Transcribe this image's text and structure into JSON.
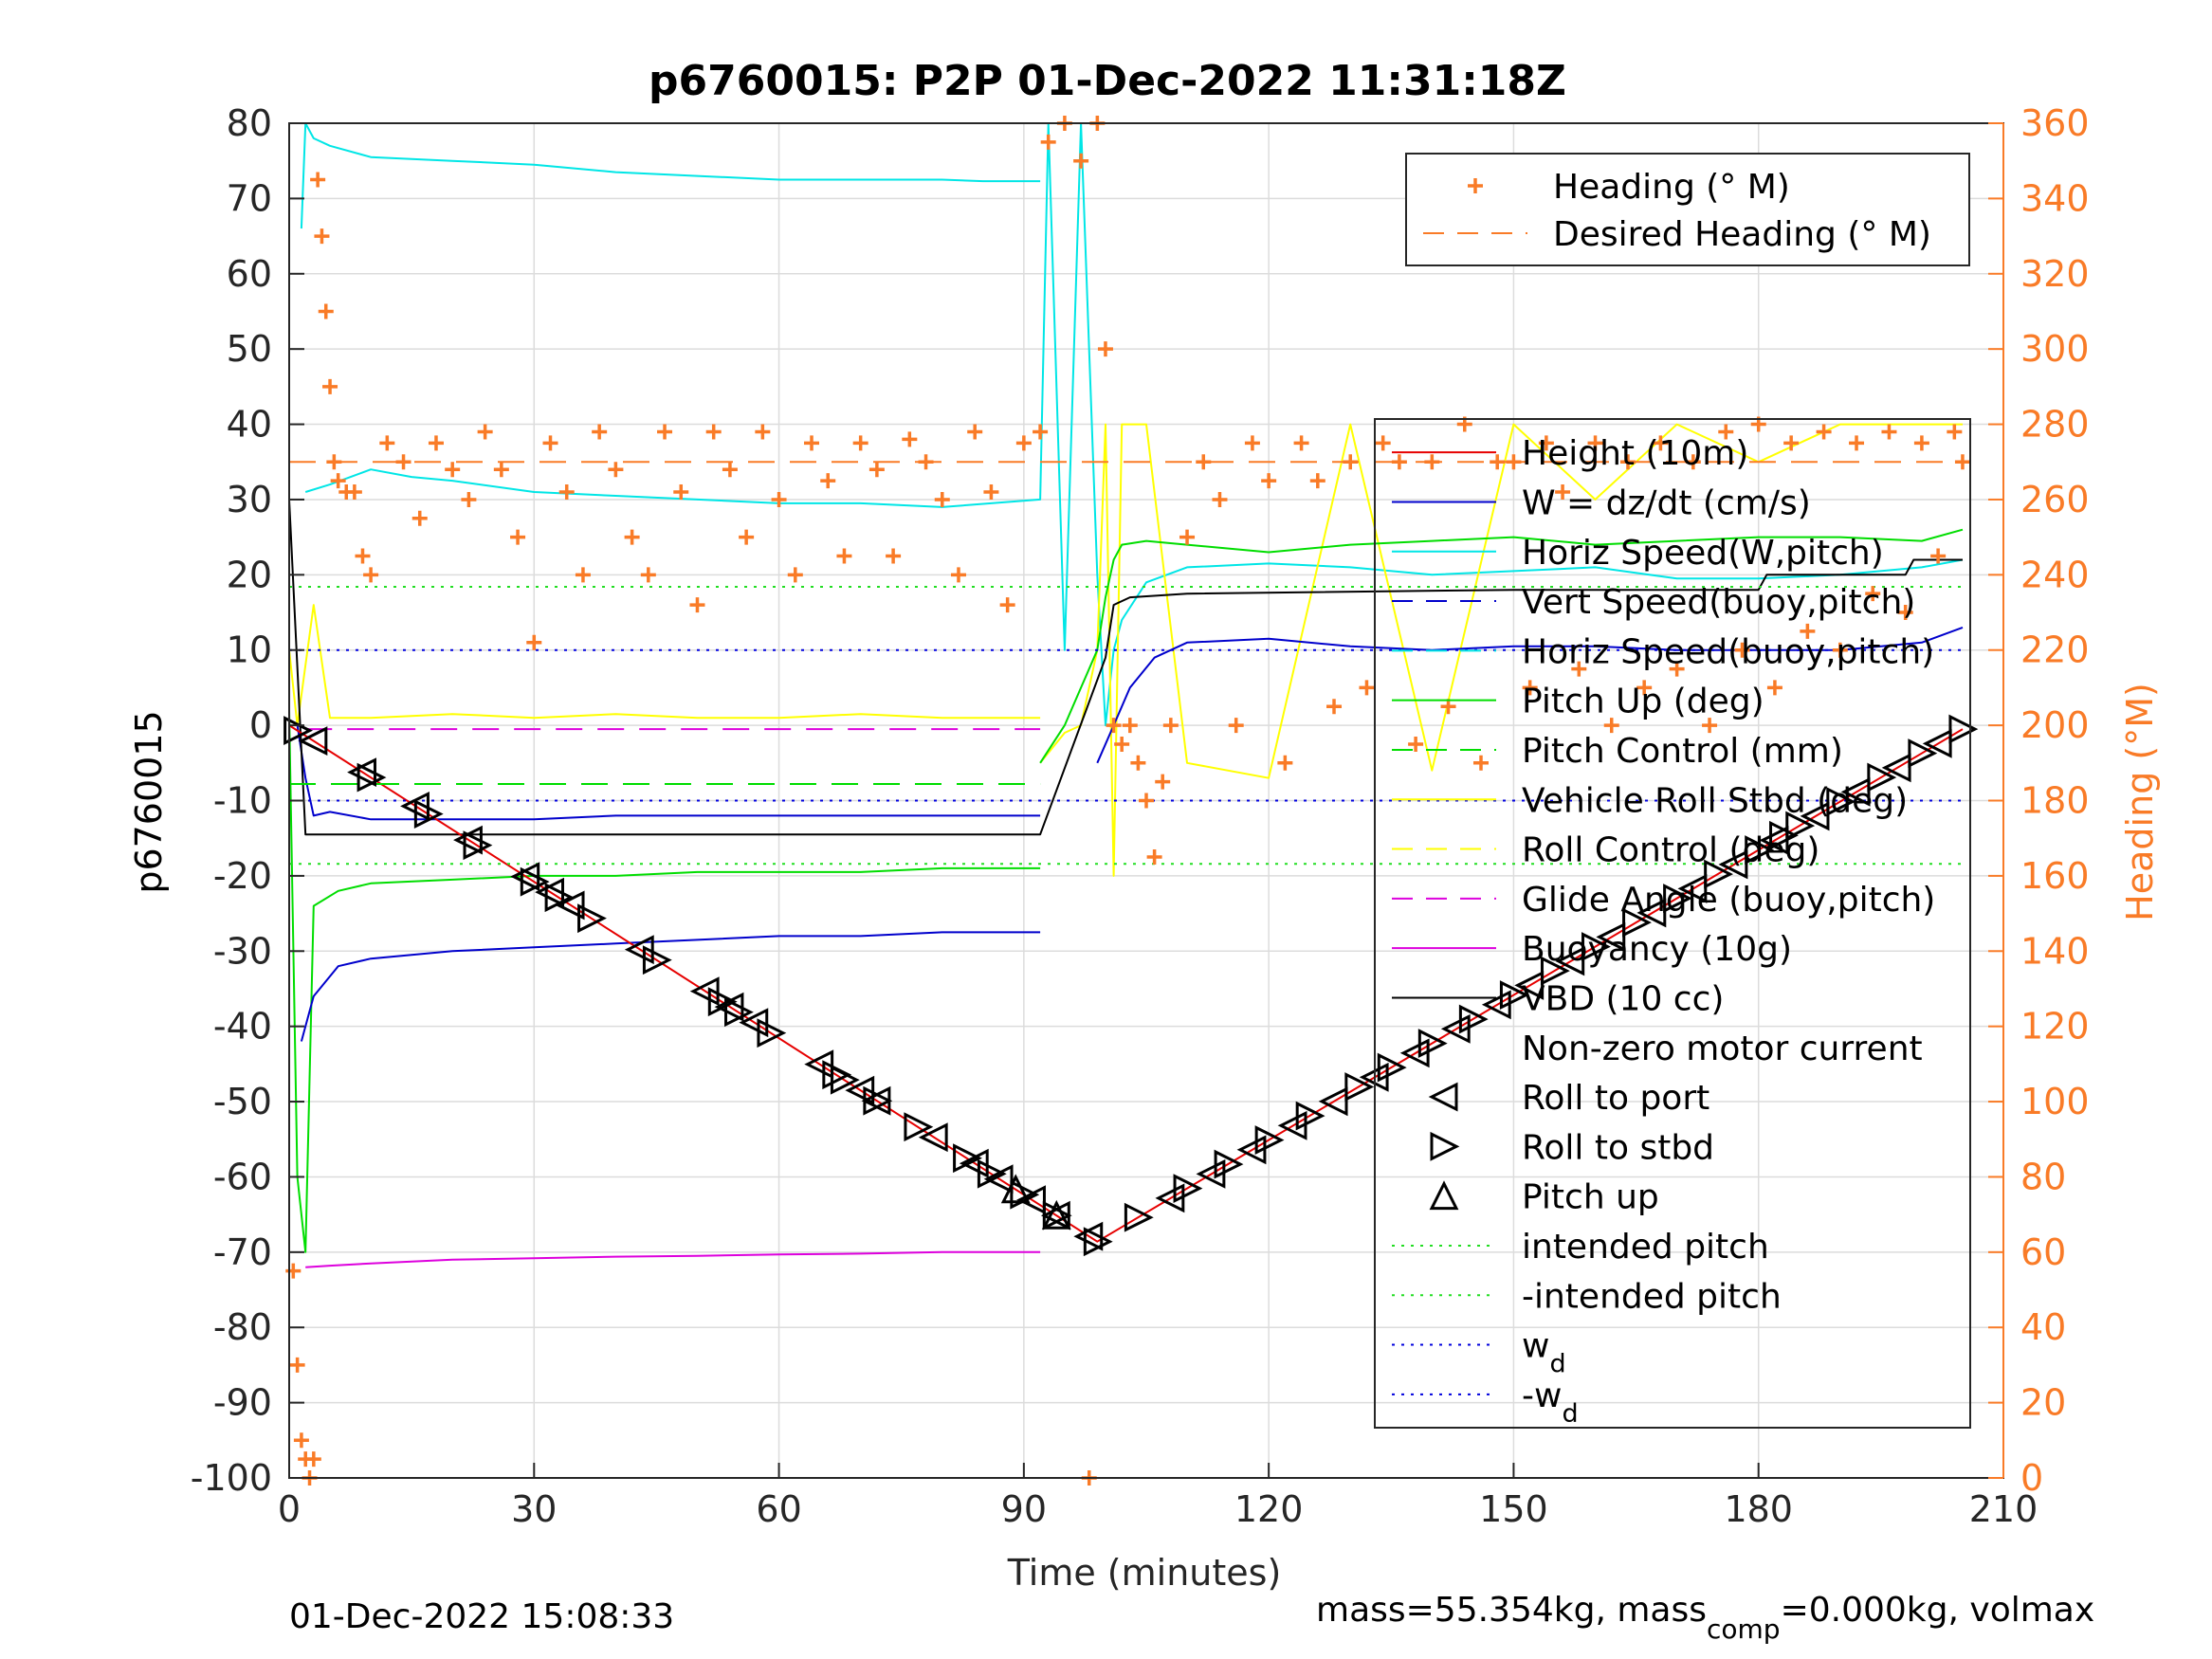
{
  "chart_data": {
    "type": "line",
    "title": "p6760015: P2P 01-Dec-2022 11:31:18Z",
    "xlabel": "Time (minutes)",
    "ylabel": "p6760015",
    "y2label": "Heading (°M)",
    "xlim": [
      0,
      210
    ],
    "ylim": [
      -100,
      80
    ],
    "y2lim": [
      0,
      360
    ],
    "grid": true,
    "x_ticks": [
      0,
      30,
      60,
      90,
      120,
      150,
      180,
      210
    ],
    "y_ticks": [
      80,
      70,
      60,
      50,
      40,
      30,
      20,
      10,
      0,
      -10,
      -20,
      -30,
      -40,
      -50,
      -60,
      -70,
      -80,
      -90,
      -100
    ],
    "y2_ticks": [
      360,
      340,
      320,
      300,
      280,
      260,
      240,
      220,
      200,
      180,
      160,
      140,
      120,
      100,
      80,
      60,
      40,
      20,
      0
    ],
    "footer_left": "01-Dec-2022 15:08:33",
    "footer_right_pre": "mass=55.354kg, mass",
    "footer_right_sub": "comp",
    "footer_right_post": "=0.000kg, volmax",
    "colors": {
      "height": "#e60000",
      "w": "#0000cc",
      "horiz_speed": "#00e6e6",
      "pitch": "#00dd00",
      "roll": "#ffff00",
      "buoyancy": "#dd00dd",
      "vbd": "#000000",
      "heading": "#f97b27",
      "intended_pitch": "#22dd22",
      "wd": "#0000dd"
    },
    "legend_heading": [
      {
        "label": "Heading (° M)",
        "style": "plus",
        "color": "#f97b27"
      },
      {
        "label": "Desired Heading (° M)",
        "style": "dash",
        "color": "#f97b27"
      }
    ],
    "legend_main": [
      {
        "label": "Height (10m)",
        "style": "solid",
        "color": "#e60000"
      },
      {
        "label": "W = dz/dt (cm/s)",
        "style": "solid",
        "color": "#0000cc"
      },
      {
        "label": "Horiz Speed(W,pitch)",
        "style": "solid",
        "color": "#00e6e6"
      },
      {
        "label": "Vert Speed(buoy,pitch)",
        "style": "dash",
        "color": "#0000cc"
      },
      {
        "label": "Horiz Speed(buoy,pitch)",
        "style": "dash",
        "color": "#00e6e6"
      },
      {
        "label": "Pitch Up (deg)",
        "style": "solid",
        "color": "#00dd00"
      },
      {
        "label": "Pitch Control (mm)",
        "style": "dash",
        "color": "#00dd00"
      },
      {
        "label": "Vehicle Roll Stbd (deg)",
        "style": "solid",
        "color": "#ffff00"
      },
      {
        "label": "Roll Control (deg)",
        "style": "dash",
        "color": "#ffff00"
      },
      {
        "label": "Glide Angle (buoy,pitch)",
        "style": "dash",
        "color": "#dd00dd"
      },
      {
        "label": "Buoyancy (10g)",
        "style": "solid",
        "color": "#dd00dd"
      },
      {
        "label": "VBD (10 cc)",
        "style": "solid",
        "color": "#000000"
      },
      {
        "label": "Non-zero motor current",
        "style": "none",
        "color": "#000000"
      },
      {
        "label": "Roll to port",
        "style": "tri-left",
        "color": "#000000"
      },
      {
        "label": "Roll to stbd",
        "style": "tri-right",
        "color": "#000000"
      },
      {
        "label": "Pitch up",
        "style": "tri-up",
        "color": "#000000"
      },
      {
        "label": "intended pitch",
        "style": "dot",
        "color": "#22dd22"
      },
      {
        "label": "-intended pitch",
        "style": "dot",
        "color": "#22dd22"
      },
      {
        "label": "w",
        "sub": "d",
        "style": "dot",
        "color": "#0000dd"
      },
      {
        "label": "-w",
        "sub": "d",
        "style": "dot",
        "color": "#0000dd"
      }
    ],
    "series": [
      {
        "name": "Height (10m)",
        "color": "#e60000",
        "x": [
          0,
          99,
          205
        ],
        "y": [
          0,
          -68.6,
          -0.5
        ]
      },
      {
        "name": "Horiz Speed(W,pitch)",
        "color": "#00e6e6",
        "segments": [
          {
            "x": [
              1.5,
              2,
              3,
              5,
              10,
              20,
              30,
              40,
              50,
              60,
              70,
              80,
              85,
              92
            ],
            "y": [
              66,
              80,
              78,
              77,
              75.5,
              75,
              74.5,
              73.5,
              73,
              72.5,
              72.5,
              72.5,
              72.3,
              72.3
            ]
          },
          {
            "x": [
              2,
              5,
              10,
              15,
              20,
              30,
              40,
              50,
              60,
              70,
              80,
              92,
              93,
              95,
              97,
              99,
              100,
              101,
              102,
              105,
              110,
              120,
              130,
              140,
              150,
              160,
              170,
              180,
              190,
              200,
              205
            ],
            "y": [
              31,
              32,
              34,
              33,
              32.5,
              31,
              30.5,
              30,
              29.5,
              29.5,
              29,
              30,
              80,
              10,
              80,
              20,
              0,
              10,
              14,
              19,
              21,
              21.5,
              21,
              20,
              20.5,
              21,
              19.5,
              19.5,
              20,
              21,
              22
            ]
          }
        ]
      },
      {
        "name": "W = dz/dt (cm/s)",
        "color": "#0000cc",
        "segments": [
          {
            "x": [
              1,
              2,
              3,
              5,
              10,
              20,
              30,
              40,
              50,
              60,
              70,
              80,
              92
            ],
            "y": [
              0,
              -7,
              -12,
              -11.5,
              -12.5,
              -12.5,
              -12.5,
              -12,
              -12,
              -12,
              -12,
              -12,
              -12
            ]
          },
          {
            "x": [
              1.5,
              3,
              6,
              10,
              20,
              30,
              40,
              50,
              60,
              70,
              80,
              92
            ],
            "y": [
              -42,
              -36,
              -32,
              -31,
              -30,
              -29.5,
              -29,
              -28.5,
              -28,
              -28,
              -27.5,
              -27.5
            ]
          },
          {
            "x": [
              99,
              101,
              103,
              106,
              110,
              120,
              130,
              140,
              150,
              160,
              170,
              180,
              190,
              200,
              205
            ],
            "y": [
              -5,
              0,
              5,
              9,
              11,
              11.5,
              10.5,
              10,
              10.5,
              10.5,
              10,
              10,
              10,
              11,
              13
            ]
          }
        ]
      },
      {
        "name": "Pitch Up (deg)",
        "color": "#00dd00",
        "segments": [
          {
            "x": [
              0,
              1,
              2,
              3,
              6,
              10,
              20,
              30,
              40,
              50,
              60,
              70,
              80,
              92
            ],
            "y": [
              2,
              -60,
              -70,
              -24,
              -22,
              -21,
              -20.5,
              -20,
              -20,
              -19.5,
              -19.5,
              -19.5,
              -19,
              -19
            ]
          },
          {
            "x": [
              92,
              95,
              97,
              99,
              100,
              101,
              102,
              105,
              110,
              120,
              130,
              140,
              150,
              160,
              170,
              180,
              190,
              200,
              205
            ],
            "y": [
              -5,
              0,
              5,
              10,
              17,
              22,
              24,
              24.5,
              24,
              23,
              24,
              24.5,
              25,
              24,
              24.5,
              25,
              25,
              24.5,
              26
            ]
          }
        ]
      },
      {
        "name": "Buoyancy (10g)",
        "color": "#dd00dd",
        "x": [
          2,
          5,
          10,
          20,
          30,
          40,
          50,
          60,
          70,
          80,
          92
        ],
        "y": [
          -72,
          -71.8,
          -71.5,
          -71,
          -70.8,
          -70.6,
          -70.5,
          -70.3,
          -70.2,
          -70,
          -70
        ]
      },
      {
        "name": "VBD (10 cc)",
        "color": "#000000",
        "x": [
          0,
          2,
          92,
          100,
          101,
          103,
          110,
          150,
          180,
          181,
          198,
          199,
          205
        ],
        "y": [
          30,
          -14.5,
          -14.5,
          9,
          16,
          17,
          17.5,
          18,
          18,
          20,
          20,
          22,
          22
        ]
      },
      {
        "name": "Vehicle Roll Stbd (deg)",
        "color": "#ffff00",
        "segments": [
          {
            "x": [
              0,
              1,
              3,
              5,
              10,
              20,
              30,
              40,
              50,
              60,
              70,
              80,
              92
            ],
            "y": [
              10,
              0,
              16,
              1,
              1,
              1.5,
              1,
              1.5,
              1,
              1,
              1.5,
              1,
              1
            ]
          },
          {
            "x": [
              92,
              95,
              97,
              99,
              100,
              101,
              102,
              105,
              110,
              120,
              130,
              140,
              150,
              160,
              170,
              180,
              190,
              200,
              205
            ],
            "y": [
              -5,
              -1,
              0,
              10,
              40,
              -20,
              40,
              40,
              -5,
              -7,
              40,
              -6,
              40,
              30,
              40,
              35,
              40,
              40,
              40
            ]
          }
        ]
      },
      {
        "name": "Heading (° M)",
        "color": "#f97b27",
        "axis": "y2",
        "x": [
          0.5,
          1,
          1.5,
          2,
          2.5,
          3,
          3.5,
          4,
          4.5,
          5,
          5.5,
          6,
          7,
          8,
          9,
          10,
          12,
          14,
          16,
          18,
          20,
          22,
          24,
          26,
          28,
          30,
          32,
          34,
          36,
          38,
          40,
          42,
          44,
          46,
          48,
          50,
          52,
          54,
          56,
          58,
          60,
          62,
          64,
          66,
          68,
          70,
          72,
          74,
          76,
          78,
          80,
          82,
          84,
          86,
          88,
          90,
          92,
          93,
          95,
          97,
          98,
          99,
          100,
          101,
          102,
          103,
          104,
          105,
          106,
          107,
          108,
          110,
          112,
          114,
          116,
          118,
          120,
          122,
          124,
          126,
          128,
          130,
          132,
          134,
          136,
          138,
          140,
          142,
          144,
          146,
          148,
          150,
          152,
          154,
          156,
          158,
          160,
          162,
          164,
          166,
          168,
          170,
          172,
          174,
          176,
          178,
          180,
          182,
          184,
          186,
          188,
          190,
          192,
          194,
          196,
          198,
          200,
          202,
          204,
          205
        ],
        "y": [
          55,
          30,
          10,
          5,
          0,
          5,
          345,
          330,
          310,
          290,
          270,
          265,
          262,
          262,
          245,
          240,
          275,
          270,
          255,
          275,
          268,
          260,
          278,
          268,
          250,
          222,
          275,
          262,
          240,
          278,
          268,
          250,
          240,
          278,
          262,
          232,
          278,
          268,
          250,
          278,
          260,
          240,
          275,
          265,
          245,
          275,
          268,
          245,
          276,
          270,
          260,
          240,
          278,
          262,
          232,
          275,
          278,
          355,
          360,
          350,
          0,
          360,
          300,
          200,
          195,
          200,
          190,
          180,
          165,
          185,
          200,
          250,
          270,
          260,
          200,
          275,
          265,
          190,
          275,
          265,
          205,
          270,
          210,
          275,
          270,
          195,
          270,
          205,
          280,
          190,
          270,
          270,
          210,
          275,
          262,
          215,
          275,
          200,
          270,
          210,
          275,
          215,
          270,
          200,
          278,
          220,
          280,
          210,
          275,
          225,
          278,
          220,
          275,
          235,
          278,
          230,
          275,
          245,
          278,
          270
        ]
      },
      {
        "name": "Desired Heading (° M)",
        "color": "#f97b27",
        "axis": "y2",
        "style": "dash",
        "x": [
          0,
          205
        ],
        "y": [
          270,
          270
        ]
      },
      {
        "name": "Glide Angle (buoy,pitch)",
        "color": "#dd00dd",
        "style": "dash",
        "x": [
          2,
          92
        ],
        "y": [
          -0.5,
          -0.5
        ]
      },
      {
        "name": "Pitch Control (mm)",
        "color": "#00dd00",
        "style": "dash",
        "x": [
          0,
          92
        ],
        "y": [
          -7.8,
          -7.8
        ]
      },
      {
        "name": "intended pitch",
        "color": "#22dd22",
        "style": "dot",
        "x": [
          0,
          205
        ],
        "y": [
          18.4,
          18.4
        ]
      },
      {
        "name": "-intended pitch",
        "color": "#22dd22",
        "style": "dot",
        "x": [
          0,
          205
        ],
        "y": [
          -18.4,
          -18.4
        ]
      },
      {
        "name": "wd",
        "color": "#0000dd",
        "style": "dot",
        "x": [
          0,
          205
        ],
        "y": [
          10,
          10
        ]
      },
      {
        "name": "-wd",
        "color": "#0000dd",
        "style": "dot",
        "x": [
          0,
          205
        ],
        "y": [
          -10,
          -10
        ]
      }
    ],
    "markers": {
      "roll_to_port": {
        "x": [
          3,
          9,
          15.5,
          22,
          29,
          32,
          34.5,
          43,
          51,
          54,
          57,
          65,
          70,
          72,
          79,
          84,
          87,
          91,
          94,
          98,
          108,
          113,
          118,
          123,
          128,
          133,
          138,
          143,
          148,
          152,
          157,
          162,
          167,
          172,
          177,
          182,
          187,
          192,
          197,
          202
        ]
      },
      "roll_to_stbd": {
        "x": [
          1,
          10,
          17,
          23,
          30,
          33,
          37,
          45,
          53,
          55,
          59,
          67,
          68,
          72,
          77,
          83,
          86,
          90,
          94,
          99,
          104,
          110,
          115,
          120,
          125,
          131,
          135,
          140,
          145,
          150,
          155,
          160,
          165,
          170,
          175,
          180,
          183,
          185,
          190,
          195,
          200,
          205
        ]
      },
      "pitch_up": {
        "x": [
          89,
          94
        ]
      }
    }
  }
}
